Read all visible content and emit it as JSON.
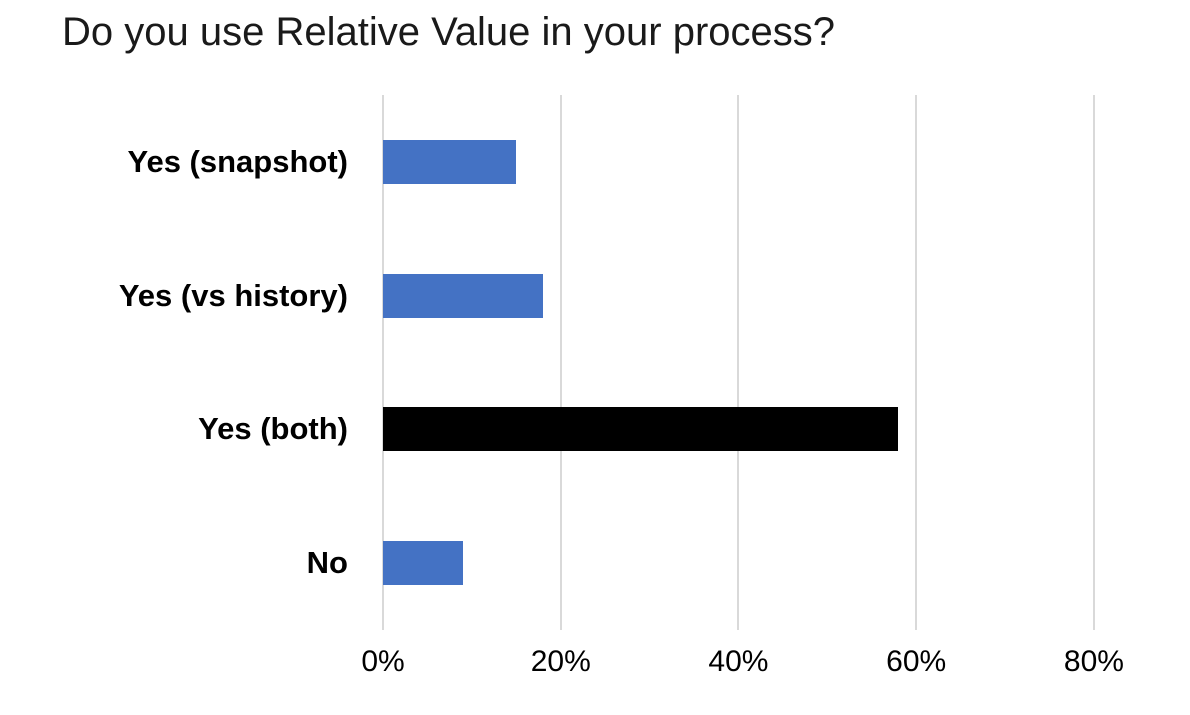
{
  "chart_data": {
    "type": "bar",
    "orientation": "horizontal",
    "title": "Do you use Relative Value in your process?",
    "categories": [
      "Yes (snapshot)",
      "Yes (vs history)",
      "Yes (both)",
      "No"
    ],
    "values": [
      15,
      18,
      58,
      9
    ],
    "bar_colors": [
      "#4472C4",
      "#4472C4",
      "#000000",
      "#4472C4"
    ],
    "x_ticks": [
      0,
      20,
      40,
      60,
      80
    ],
    "x_tick_labels": [
      "0%",
      "20%",
      "40%",
      "60%",
      "80%"
    ],
    "xlim": [
      0,
      88
    ],
    "xlabel": "",
    "ylabel": "",
    "grid": true,
    "legend": false,
    "gridline_color": "#d9d9d9",
    "background_color": "#ffffff"
  }
}
